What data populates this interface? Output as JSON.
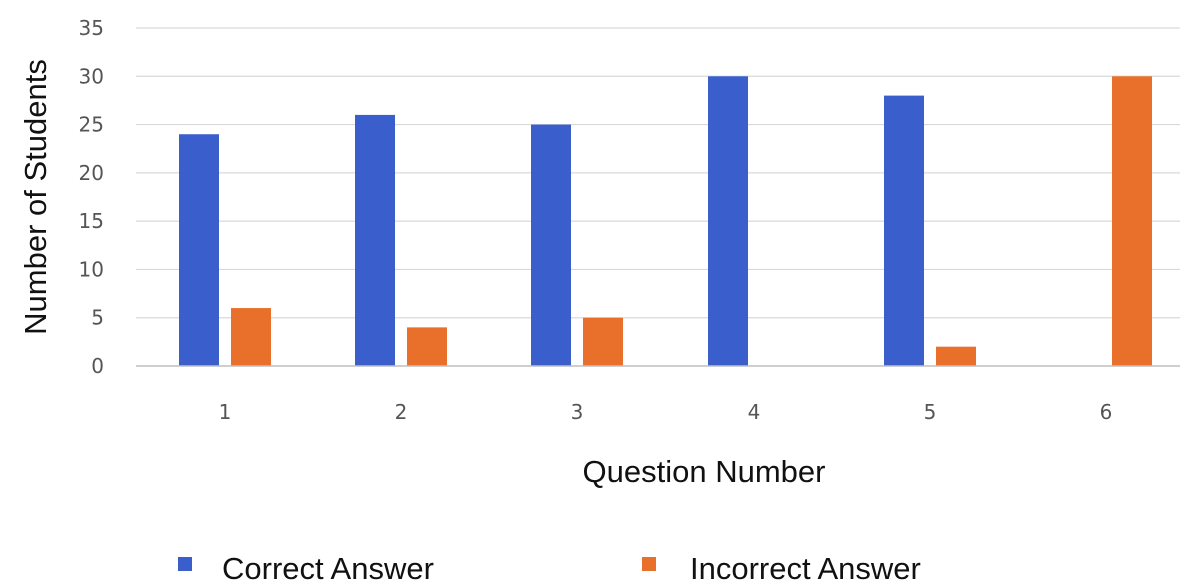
{
  "chart_data": {
    "type": "bar",
    "title": "",
    "xlabel": "Question Number",
    "ylabel": "Number of Students",
    "categories": [
      "1",
      "2",
      "3",
      "4",
      "5",
      "6"
    ],
    "series": [
      {
        "name": "Correct Answer",
        "values": [
          24,
          26,
          25,
          30,
          28,
          0
        ],
        "color": "#3a5fcd"
      },
      {
        "name": "Incorrect Answer",
        "values": [
          6,
          4,
          5,
          0,
          2,
          30
        ],
        "color": "#e8702a"
      }
    ],
    "ylim": [
      0,
      35
    ],
    "yticks": [
      "0",
      "5",
      "10",
      "15",
      "20",
      "25",
      "30",
      "35"
    ],
    "grid": true,
    "legend_position": "bottom"
  }
}
